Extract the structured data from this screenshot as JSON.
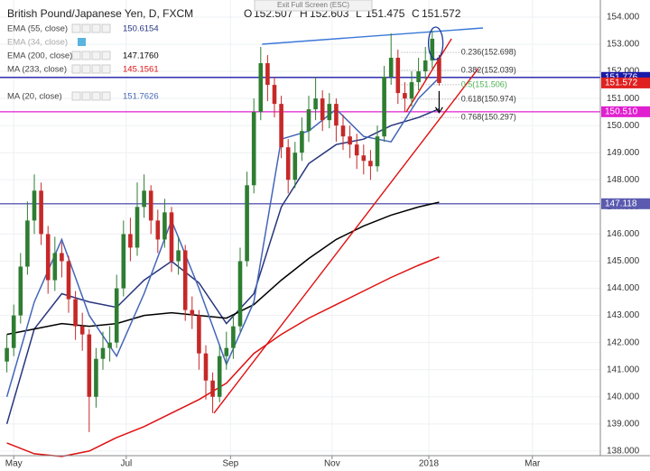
{
  "chart_data": {
    "type": "candlestick",
    "title": "British Pound/Japanese Yen, D, FXCM",
    "ohlc_labels": [
      "O",
      "H",
      "L",
      "C"
    ],
    "button": "Exit Full Screen (ESC)",
    "xlim": [
      -1,
      86.5
    ],
    "xticks": [
      {
        "value": 1,
        "label": "May"
      },
      {
        "value": 17.4,
        "label": "Jul"
      },
      {
        "value": 32.6,
        "label": "Sep"
      },
      {
        "value": 47.4,
        "label": "Nov"
      },
      {
        "value": 61.5,
        "label": "2018"
      },
      {
        "value": 76.6,
        "label": "Mar"
      }
    ],
    "ylim": [
      137.83,
      154.63
    ],
    "yticks": [
      {
        "value": 138,
        "label": "138.000"
      },
      {
        "value": 139,
        "label": "139.000"
      },
      {
        "value": 140,
        "label": "140.000"
      },
      {
        "value": 141,
        "label": "141.000"
      },
      {
        "value": 142,
        "label": "142.000"
      },
      {
        "value": 143,
        "label": "143.000"
      },
      {
        "value": 144,
        "label": "144.000"
      },
      {
        "value": 145,
        "label": "145.000"
      },
      {
        "value": 146,
        "label": "146.000"
      },
      {
        "value": 147,
        "label": "147.000"
      },
      {
        "value": 148,
        "label": "148.000"
      },
      {
        "value": 149,
        "label": "149.000"
      },
      {
        "value": 150,
        "label": "150.000"
      },
      {
        "value": 151,
        "label": "151.000"
      },
      {
        "value": 152,
        "label": "152.000"
      },
      {
        "value": 153,
        "label": "153.000"
      },
      {
        "value": 154,
        "label": "154.000"
      }
    ],
    "grid": true,
    "up_color": "#2e7d32",
    "down_color": "#c62828",
    "candles": {
      "open": [
        141.3,
        141.8,
        143.0,
        144.8,
        146.5,
        147.6,
        146.0,
        144.3,
        145.3,
        145.0,
        143.6,
        142.6,
        142.3,
        140.0,
        141.4,
        141.8,
        142.0,
        144.0,
        146.0,
        145.5,
        147.0,
        147.6,
        146.5,
        145.8,
        146.8,
        145.0,
        145.4,
        143.2,
        143.0,
        141.6,
        140.6,
        140.0,
        141.5,
        141.8,
        142.6,
        145.0,
        147.8,
        150.5,
        152.3,
        151.5,
        150.8,
        149.2,
        148.0,
        149.0,
        149.8,
        150.6,
        151.0,
        150.2,
        150.8,
        150.0,
        149.6,
        149.3,
        148.9,
        148.7,
        148.5,
        149.6,
        151.8,
        152.5,
        151.2,
        151.0,
        151.6,
        152.0,
        152.4,
        152.507
      ],
      "high": [
        142.3,
        143.4,
        145.3,
        147.2,
        148.2,
        147.9,
        146.3,
        145.9,
        145.7,
        145.2,
        143.9,
        143.1,
        142.5,
        141.8,
        142.4,
        142.6,
        144.5,
        146.5,
        146.6,
        147.9,
        148.2,
        147.8,
        146.9,
        147.3,
        147.0,
        145.9,
        145.6,
        143.7,
        143.2,
        141.9,
        140.9,
        141.9,
        142.4,
        143.0,
        145.5,
        148.3,
        151.0,
        152.9,
        152.6,
        151.8,
        151.1,
        149.5,
        149.4,
        150.3,
        151.1,
        151.8,
        151.3,
        151.2,
        151.0,
        150.4,
        150.0,
        149.7,
        149.3,
        149.1,
        150.0,
        152.2,
        153.4,
        152.8,
        151.6,
        152.0,
        152.5,
        152.9,
        153.5,
        152.603
      ],
      "low": [
        140.9,
        141.5,
        142.7,
        144.5,
        146.0,
        145.6,
        143.8,
        143.9,
        144.4,
        143.1,
        142.1,
        141.7,
        138.7,
        139.6,
        141.0,
        141.3,
        141.8,
        143.7,
        145.0,
        145.2,
        146.6,
        146.0,
        145.3,
        145.5,
        144.6,
        144.5,
        142.8,
        142.5,
        141.0,
        139.9,
        139.4,
        139.8,
        141.0,
        141.4,
        142.4,
        144.8,
        147.5,
        150.2,
        150.9,
        150.3,
        148.8,
        147.5,
        147.7,
        148.7,
        149.4,
        150.2,
        149.8,
        149.9,
        149.4,
        149.1,
        148.8,
        148.4,
        148.2,
        148.0,
        148.3,
        149.4,
        151.5,
        150.8,
        150.5,
        150.7,
        151.3,
        151.7,
        152.1,
        151.475
      ],
      "close": [
        141.8,
        143.0,
        144.8,
        146.5,
        147.6,
        146.0,
        144.3,
        145.3,
        145.0,
        143.6,
        142.6,
        142.3,
        140.0,
        141.4,
        141.8,
        142.0,
        144.0,
        146.0,
        145.5,
        147.0,
        147.6,
        146.5,
        145.8,
        146.8,
        145.0,
        145.4,
        143.2,
        143.0,
        141.6,
        140.6,
        140.0,
        141.5,
        141.8,
        142.6,
        145.0,
        147.8,
        150.5,
        152.3,
        151.5,
        150.8,
        149.2,
        148.0,
        149.0,
        149.8,
        150.6,
        151.0,
        150.2,
        150.8,
        150.0,
        149.6,
        149.3,
        148.9,
        148.7,
        148.5,
        149.6,
        151.8,
        152.5,
        151.2,
        151.0,
        151.6,
        152.0,
        152.4,
        153.2,
        151.572
      ]
    },
    "indicators": [
      {
        "name": "EMA (55, close)",
        "color": "#27357e",
        "x": [
          0,
          4,
          8,
          12,
          16,
          20,
          24,
          28,
          32,
          36,
          40,
          44,
          48,
          52,
          56,
          60,
          63
        ],
        "values": [
          139.0,
          142.5,
          143.8,
          143.5,
          143.3,
          144.3,
          145.0,
          144.2,
          142.7,
          143.8,
          147.0,
          148.6,
          149.3,
          149.5,
          150.0,
          150.3,
          150.6154
        ]
      },
      {
        "name": "EMA (200, close)",
        "color": "#000000",
        "x": [
          0,
          4,
          8,
          12,
          16,
          20,
          24,
          28,
          32,
          36,
          40,
          44,
          48,
          52,
          56,
          60,
          63
        ],
        "values": [
          142.3,
          142.5,
          142.7,
          142.6,
          142.7,
          143.0,
          143.1,
          143.0,
          142.9,
          143.4,
          144.3,
          145.1,
          145.8,
          146.3,
          146.7,
          147.0,
          147.176
        ],
        "value_label": "147.1760"
      },
      {
        "name": "MA (233, close)",
        "color": "#e01010",
        "x": [
          0,
          4,
          8,
          12,
          16,
          20,
          24,
          28,
          32,
          36,
          40,
          44,
          48,
          52,
          56,
          60,
          63
        ],
        "values": [
          138.3,
          137.9,
          137.8,
          138.0,
          138.5,
          138.9,
          139.4,
          139.9,
          140.5,
          141.6,
          142.3,
          142.9,
          143.4,
          143.9,
          144.4,
          144.85,
          145.1561
        ]
      },
      {
        "name": "MA (20, close)",
        "color": "#4466b8",
        "x": [
          0,
          4,
          8,
          12,
          16,
          20,
          24,
          28,
          32,
          36,
          40,
          44,
          48,
          52,
          56,
          60,
          63
        ],
        "values": [
          140.0,
          143.5,
          145.8,
          143.0,
          141.5,
          143.8,
          146.5,
          144.0,
          141.2,
          143.5,
          149.5,
          149.8,
          150.6,
          149.6,
          149.4,
          151.0,
          151.7626
        ]
      }
    ],
    "inactive_indicators": [
      "EMA (34, close)"
    ],
    "levels": [
      {
        "value": 151.776,
        "color": "#1a1aa8"
      },
      {
        "value": 150.51,
        "label": "150.510",
        "color": "#e020d0"
      },
      {
        "value": 147.118,
        "color": "#5a5ab0"
      }
    ],
    "fib": [
      {
        "value": 152.698,
        "label": "0.236(152.698)",
        "color": "#333333"
      },
      {
        "value": 152.039,
        "label": "0.382(152.039)",
        "color": "#333333"
      },
      {
        "value": 151.506,
        "label": "0.5(151.506)",
        "color": "#4caf50"
      },
      {
        "value": 150.974,
        "label": "0.618(150.974)",
        "color": "#333333"
      },
      {
        "value": 150.297,
        "label": "0.768(150.297)",
        "color": "#333333"
      }
    ],
    "trendlines": [
      {
        "color": "#3a78d8",
        "x": [
          37.2,
          69.4
        ],
        "values": [
          153.0,
          153.6
        ]
      },
      {
        "color": "#e01010",
        "x": [
          30.2,
          68.7
        ],
        "values": [
          139.4,
          152.1
        ]
      },
      {
        "color": "#e01010",
        "x": [
          58.2,
          64.8
        ],
        "values": [
          150.5,
          153.2
        ]
      }
    ]
  }
}
